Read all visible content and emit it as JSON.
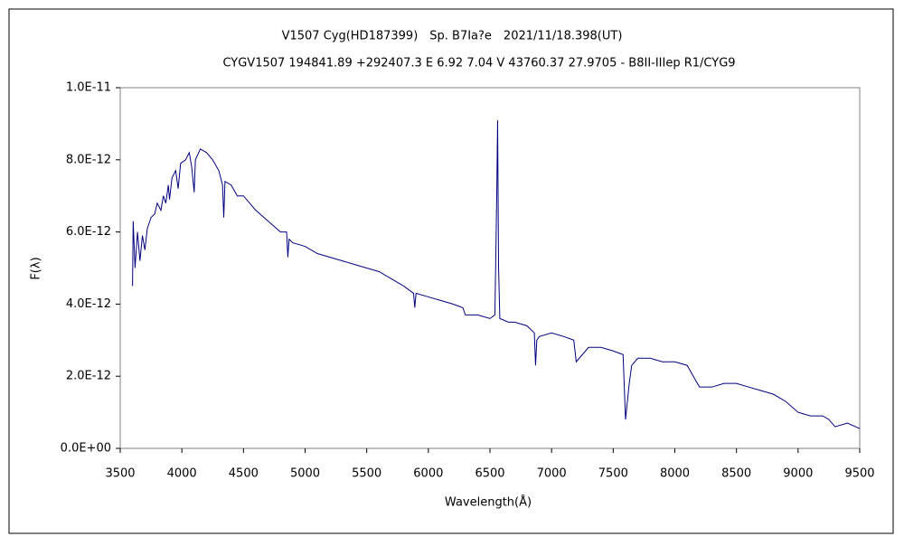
{
  "chart_data": {
    "type": "line",
    "title": "V1507 Cyg(HD187399)　Sp. B7Ia?e　2021/11/18.398(UT)",
    "subtitle": "CYGV1507 194841.89 +292407.3 E 6.92 7.04 V 43760.37 27.9705 - B8II-IIIep R1/CYG9",
    "xlabel": "Wavelength(Å)",
    "ylabel": "F(λ)",
    "color": "#000080",
    "xlim": [
      3500,
      9500
    ],
    "xticks": [
      3500,
      4000,
      4500,
      5000,
      5500,
      6000,
      6500,
      7000,
      7500,
      8000,
      8500,
      9000,
      9500
    ],
    "ylim": [
      0,
      1e-11
    ],
    "yticks": [
      {
        "value": 0,
        "label": "0.0E+00"
      },
      {
        "value": 2e-12,
        "label": "2.0E-12"
      },
      {
        "value": 4e-12,
        "label": "4.0E-12"
      },
      {
        "value": 6e-12,
        "label": "6.0E-12"
      },
      {
        "value": 8e-12,
        "label": "8.0E-12"
      },
      {
        "value": 1e-11,
        "label": "1.0E-11"
      }
    ],
    "x": [
      3600,
      3605,
      3620,
      3640,
      3660,
      3680,
      3700,
      3720,
      3750,
      3780,
      3800,
      3830,
      3850,
      3870,
      3890,
      3900,
      3920,
      3950,
      3970,
      3990,
      4030,
      4060,
      4080,
      4100,
      4110,
      4150,
      4200,
      4250,
      4300,
      4330,
      4340,
      4350,
      4400,
      4450,
      4500,
      4550,
      4600,
      4700,
      4800,
      4850,
      4860,
      4870,
      4900,
      5000,
      5100,
      5200,
      5300,
      5400,
      5500,
      5600,
      5700,
      5800,
      5880,
      5890,
      5900,
      6000,
      6100,
      6200,
      6280,
      6300,
      6400,
      6500,
      6540,
      6555,
      6562,
      6570,
      6580,
      6650,
      6700,
      6800,
      6860,
      6870,
      6880,
      6900,
      7000,
      7100,
      7180,
      7200,
      7250,
      7300,
      7400,
      7500,
      7580,
      7600,
      7630,
      7650,
      7700,
      7800,
      7900,
      8000,
      8100,
      8150,
      8200,
      8300,
      8400,
      8500,
      8600,
      8700,
      8800,
      8900,
      9000,
      9100,
      9200,
      9250,
      9300,
      9400,
      9500
    ],
    "values": [
      4.5e-12,
      6.3e-12,
      5e-12,
      6e-12,
      5.2e-12,
      5.9e-12,
      5.5e-12,
      6.1e-12,
      6.4e-12,
      6.5e-12,
      6.8e-12,
      6.6e-12,
      7e-12,
      6.8e-12,
      7.3e-12,
      6.9e-12,
      7.5e-12,
      7.7e-12,
      7.2e-12,
      7.9e-12,
      8e-12,
      8.2e-12,
      7.8e-12,
      7.1e-12,
      8e-12,
      8.3e-12,
      8.2e-12,
      8e-12,
      7.7e-12,
      7.3e-12,
      6.4e-12,
      7.4e-12,
      7.3e-12,
      7e-12,
      7e-12,
      6.8e-12,
      6.6e-12,
      6.3e-12,
      6e-12,
      6e-12,
      5.3e-12,
      5.8e-12,
      5.7e-12,
      5.6e-12,
      5.4e-12,
      5.3e-12,
      5.2e-12,
      5.1e-12,
      5e-12,
      4.9e-12,
      4.7e-12,
      4.5e-12,
      4.3e-12,
      3.9e-12,
      4.3e-12,
      4.2e-12,
      4.1e-12,
      4e-12,
      3.9e-12,
      3.7e-12,
      3.7e-12,
      3.6e-12,
      3.7e-12,
      7e-12,
      9.1e-12,
      5e-12,
      3.6e-12,
      3.5e-12,
      3.5e-12,
      3.4e-12,
      3.2e-12,
      2.3e-12,
      3e-12,
      3.1e-12,
      3.2e-12,
      3.1e-12,
      3e-12,
      2.4e-12,
      2.6e-12,
      2.8e-12,
      2.8e-12,
      2.7e-12,
      2.6e-12,
      8e-13,
      1.8e-12,
      2.3e-12,
      2.5e-12,
      2.5e-12,
      2.4e-12,
      2.4e-12,
      2.3e-12,
      2e-12,
      1.7e-12,
      1.7e-12,
      1.8e-12,
      1.8e-12,
      1.7e-12,
      1.6e-12,
      1.5e-12,
      1.3e-12,
      1e-12,
      9e-13,
      9e-13,
      8e-13,
      6e-13,
      7e-13,
      5.5e-13
    ]
  }
}
